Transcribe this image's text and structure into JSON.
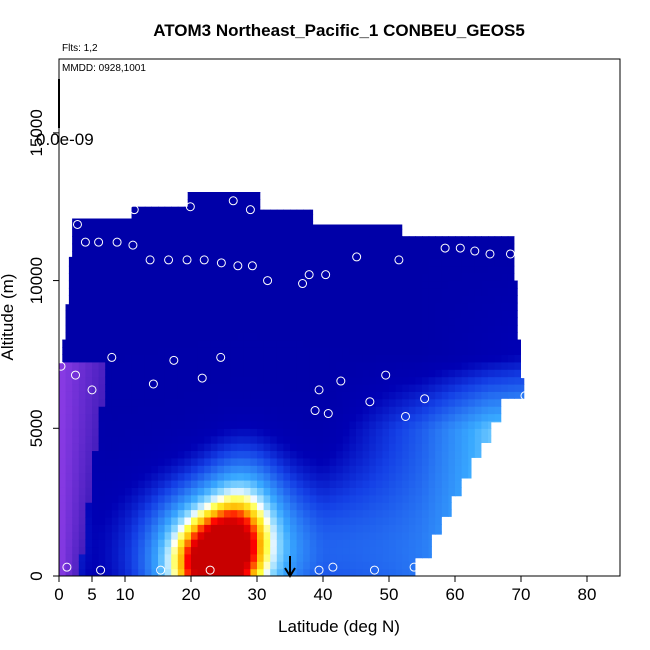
{
  "chart_data": {
    "type": "heatmap",
    "title": "ATOM3 Northeast_Pacific_1 CONBEU_GEOS5",
    "flights_label": "Flts: 1,2",
    "mmdd_label": "MMDD: 0928,1001",
    "xlabel": "Latitude (deg N)",
    "ylabel": "Altitude (m)",
    "xlim": [
      0,
      85
    ],
    "ylim": [
      0,
      17500
    ],
    "x_ticks": [
      0,
      5,
      10,
      20,
      30,
      40,
      50,
      60,
      70,
      80
    ],
    "x_tick_labels": [
      "0",
      "5",
      "10",
      "20",
      "30",
      "40",
      "50",
      "60",
      "70",
      "80"
    ],
    "y_ticks": [
      0,
      5000,
      10000,
      15000
    ],
    "y_tick_labels": [
      "0",
      "5000",
      "10000",
      "15000"
    ],
    "colorbar_label": "0.0e-09",
    "grid": false,
    "curtain_color_low": "#0000b4",
    "curtain_color_mid": "#38a8ff",
    "curtain_color_hot": "#ff0000",
    "arrow_latitude": 35,
    "observations": [
      {
        "x": 0.3,
        "y": 7100
      },
      {
        "x": 1.2,
        "y": 300
      },
      {
        "x": 2.5,
        "y": 6800
      },
      {
        "x": 2.8,
        "y": 11900
      },
      {
        "x": 4.0,
        "y": 11300
      },
      {
        "x": 5.0,
        "y": 6300
      },
      {
        "x": 6.0,
        "y": 11300
      },
      {
        "x": 6.3,
        "y": 200
      },
      {
        "x": 8.8,
        "y": 11300
      },
      {
        "x": 8.0,
        "y": 7400
      },
      {
        "x": 11.2,
        "y": 11200
      },
      {
        "x": 11.4,
        "y": 12400
      },
      {
        "x": 13.8,
        "y": 10700
      },
      {
        "x": 14.3,
        "y": 6500
      },
      {
        "x": 15.4,
        "y": 200
      },
      {
        "x": 16.6,
        "y": 10700
      },
      {
        "x": 17.4,
        "y": 7300
      },
      {
        "x": 19.4,
        "y": 10700
      },
      {
        "x": 19.9,
        "y": 12500
      },
      {
        "x": 21.7,
        "y": 6700
      },
      {
        "x": 22.0,
        "y": 10700
      },
      {
        "x": 22.9,
        "y": 200
      },
      {
        "x": 24.5,
        "y": 7400
      },
      {
        "x": 24.6,
        "y": 10600
      },
      {
        "x": 26.4,
        "y": 12700
      },
      {
        "x": 27.1,
        "y": 10500
      },
      {
        "x": 29.0,
        "y": 12400
      },
      {
        "x": 29.3,
        "y": 10500
      },
      {
        "x": 31.6,
        "y": 10000
      },
      {
        "x": 36.9,
        "y": 9900
      },
      {
        "x": 37.9,
        "y": 10200
      },
      {
        "x": 38.8,
        "y": 5600
      },
      {
        "x": 39.4,
        "y": 6300
      },
      {
        "x": 39.4,
        "y": 200
      },
      {
        "x": 40.4,
        "y": 10200
      },
      {
        "x": 40.8,
        "y": 5500
      },
      {
        "x": 41.5,
        "y": 300
      },
      {
        "x": 42.7,
        "y": 6600
      },
      {
        "x": 45.1,
        "y": 10800
      },
      {
        "x": 47.1,
        "y": 5900
      },
      {
        "x": 47.8,
        "y": 200
      },
      {
        "x": 49.5,
        "y": 6800
      },
      {
        "x": 51.5,
        "y": 10700
      },
      {
        "x": 52.5,
        "y": 5400
      },
      {
        "x": 53.8,
        "y": 300
      },
      {
        "x": 55.4,
        "y": 6000
      },
      {
        "x": 58.5,
        "y": 11100
      },
      {
        "x": 60.8,
        "y": 11100
      },
      {
        "x": 63.0,
        "y": 11000
      },
      {
        "x": 65.3,
        "y": 10900
      },
      {
        "x": 68.4,
        "y": 10900
      },
      {
        "x": 70.6,
        "y": 6100
      }
    ]
  }
}
